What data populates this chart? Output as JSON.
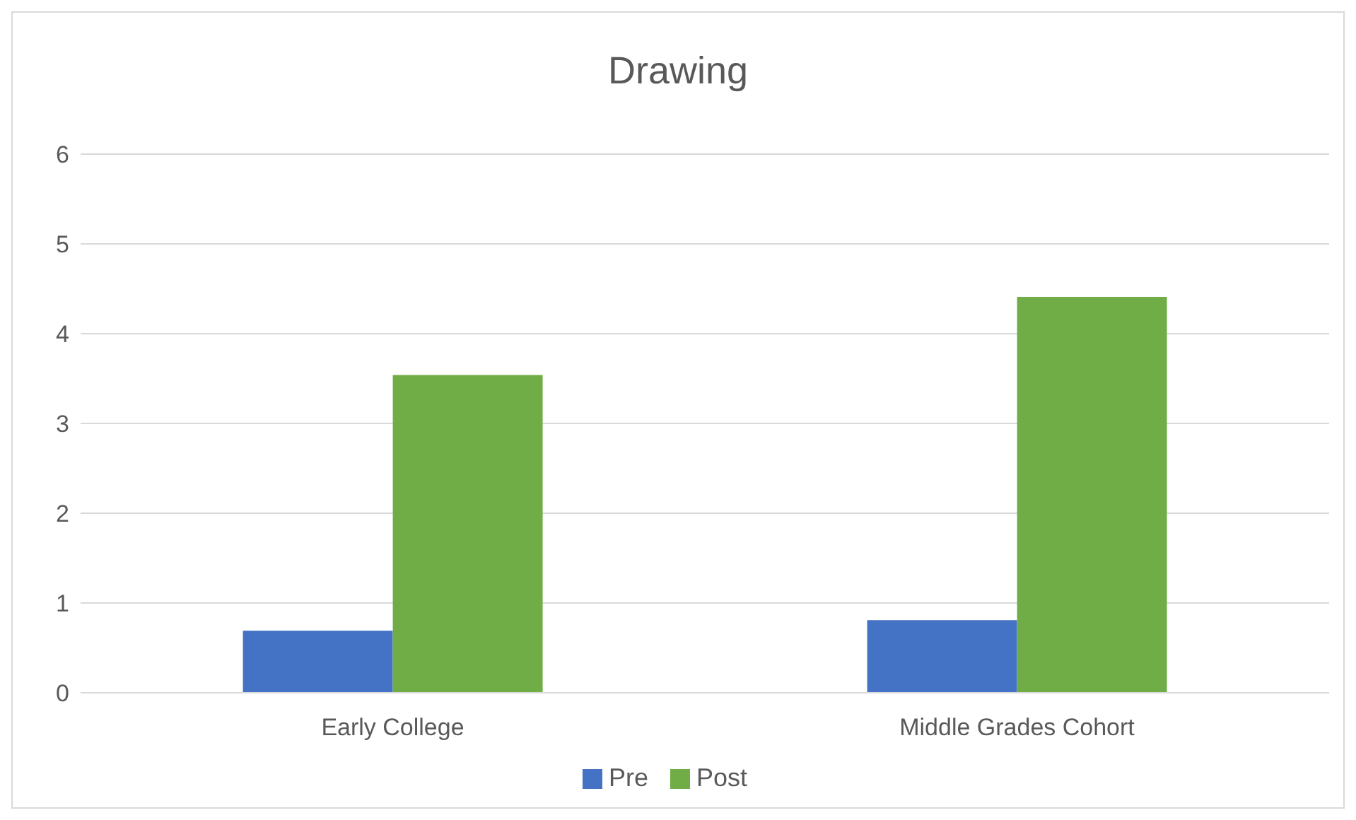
{
  "chart_data": {
    "type": "bar",
    "title": "Drawing",
    "categories": [
      "Early College",
      "Middle Grades Cohort"
    ],
    "series": [
      {
        "name": "Pre",
        "color": "#4472c4",
        "values": [
          0.69,
          0.81
        ]
      },
      {
        "name": "Post",
        "color": "#70ad47",
        "values": [
          3.54,
          4.41
        ]
      }
    ],
    "ylim": [
      0,
      6
    ],
    "yticks": [
      0,
      1,
      2,
      3,
      4,
      5,
      6
    ],
    "grid": "y",
    "legend": "bottom"
  }
}
